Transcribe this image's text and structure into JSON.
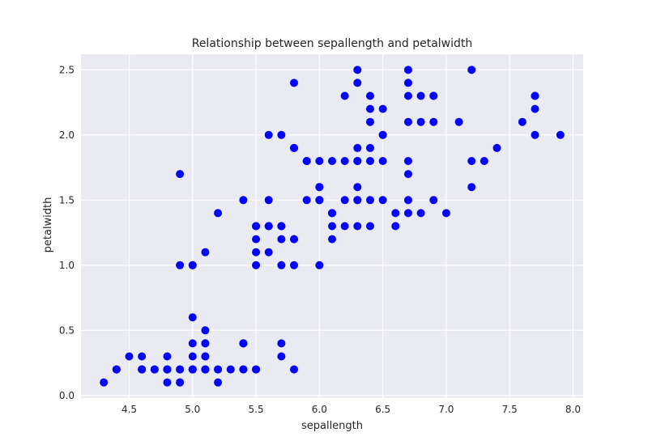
{
  "chart_data": {
    "type": "scatter",
    "title": "Relationship between sepallength and petalwidth",
    "xlabel": "sepallength",
    "ylabel": "petalwidth",
    "xlim": [
      4.12,
      8.08
    ],
    "ylim": [
      -0.02,
      2.62
    ],
    "xticks": [
      4.5,
      5.0,
      5.5,
      6.0,
      6.5,
      7.0,
      7.5,
      8.0
    ],
    "xtick_labels": [
      "4.5",
      "5.0",
      "5.5",
      "6.0",
      "6.5",
      "7.0",
      "7.5",
      "8.0"
    ],
    "yticks": [
      0.0,
      0.5,
      1.0,
      1.5,
      2.0,
      2.5
    ],
    "ytick_labels": [
      "0.0",
      "0.5",
      "1.0",
      "1.5",
      "2.0",
      "2.5"
    ],
    "grid": true,
    "colors": {
      "background": "#EAEAF2",
      "grid": "#FFFFFF",
      "marker": "#0000FF"
    },
    "points": [
      [
        5.1,
        0.2
      ],
      [
        4.9,
        0.2
      ],
      [
        4.7,
        0.2
      ],
      [
        4.6,
        0.2
      ],
      [
        5.0,
        0.2
      ],
      [
        5.4,
        0.4
      ],
      [
        4.6,
        0.3
      ],
      [
        5.0,
        0.2
      ],
      [
        4.4,
        0.2
      ],
      [
        4.9,
        0.1
      ],
      [
        5.4,
        0.2
      ],
      [
        4.8,
        0.2
      ],
      [
        4.8,
        0.1
      ],
      [
        4.3,
        0.1
      ],
      [
        5.8,
        0.2
      ],
      [
        5.7,
        0.4
      ],
      [
        5.4,
        0.4
      ],
      [
        5.1,
        0.3
      ],
      [
        5.7,
        0.3
      ],
      [
        5.1,
        0.3
      ],
      [
        5.4,
        0.2
      ],
      [
        5.1,
        0.4
      ],
      [
        4.6,
        0.2
      ],
      [
        5.1,
        0.5
      ],
      [
        4.8,
        0.2
      ],
      [
        5.0,
        0.2
      ],
      [
        5.0,
        0.4
      ],
      [
        5.2,
        0.2
      ],
      [
        5.2,
        0.2
      ],
      [
        4.7,
        0.2
      ],
      [
        4.8,
        0.2
      ],
      [
        5.4,
        0.4
      ],
      [
        5.2,
        0.1
      ],
      [
        5.5,
        0.2
      ],
      [
        4.9,
        0.2
      ],
      [
        5.0,
        0.2
      ],
      [
        5.5,
        0.2
      ],
      [
        4.9,
        0.1
      ],
      [
        4.4,
        0.2
      ],
      [
        5.1,
        0.2
      ],
      [
        5.0,
        0.3
      ],
      [
        4.5,
        0.3
      ],
      [
        4.4,
        0.2
      ],
      [
        5.0,
        0.6
      ],
      [
        5.1,
        0.4
      ],
      [
        4.8,
        0.3
      ],
      [
        5.1,
        0.2
      ],
      [
        4.6,
        0.2
      ],
      [
        5.3,
        0.2
      ],
      [
        5.0,
        0.2
      ],
      [
        7.0,
        1.4
      ],
      [
        6.4,
        1.5
      ],
      [
        6.9,
        1.5
      ],
      [
        5.5,
        1.3
      ],
      [
        6.5,
        1.5
      ],
      [
        5.7,
        1.3
      ],
      [
        6.3,
        1.6
      ],
      [
        4.9,
        1.0
      ],
      [
        6.6,
        1.3
      ],
      [
        5.2,
        1.4
      ],
      [
        5.0,
        1.0
      ],
      [
        5.9,
        1.5
      ],
      [
        6.0,
        1.0
      ],
      [
        6.1,
        1.4
      ],
      [
        5.6,
        1.3
      ],
      [
        6.7,
        1.4
      ],
      [
        5.6,
        1.5
      ],
      [
        5.8,
        1.0
      ],
      [
        6.2,
        1.5
      ],
      [
        5.6,
        1.1
      ],
      [
        5.9,
        1.8
      ],
      [
        6.1,
        1.3
      ],
      [
        6.3,
        1.5
      ],
      [
        6.1,
        1.2
      ],
      [
        6.4,
        1.3
      ],
      [
        6.6,
        1.4
      ],
      [
        6.8,
        1.4
      ],
      [
        6.7,
        1.7
      ],
      [
        6.0,
        1.5
      ],
      [
        5.7,
        1.0
      ],
      [
        5.5,
        1.1
      ],
      [
        5.5,
        1.0
      ],
      [
        5.8,
        1.2
      ],
      [
        6.0,
        1.6
      ],
      [
        5.4,
        1.5
      ],
      [
        6.0,
        1.6
      ],
      [
        6.7,
        1.5
      ],
      [
        6.3,
        1.3
      ],
      [
        5.6,
        1.3
      ],
      [
        5.5,
        1.3
      ],
      [
        5.5,
        1.2
      ],
      [
        6.1,
        1.4
      ],
      [
        5.8,
        1.2
      ],
      [
        5.0,
        1.0
      ],
      [
        5.6,
        1.3
      ],
      [
        5.7,
        1.2
      ],
      [
        5.7,
        1.3
      ],
      [
        6.2,
        1.3
      ],
      [
        5.1,
        1.1
      ],
      [
        5.7,
        1.3
      ],
      [
        6.3,
        2.5
      ],
      [
        5.8,
        1.9
      ],
      [
        7.1,
        2.1
      ],
      [
        6.3,
        1.8
      ],
      [
        6.5,
        2.2
      ],
      [
        7.6,
        2.1
      ],
      [
        4.9,
        1.7
      ],
      [
        7.3,
        1.8
      ],
      [
        6.7,
        1.8
      ],
      [
        7.2,
        2.5
      ],
      [
        6.5,
        2.0
      ],
      [
        6.4,
        1.9
      ],
      [
        6.8,
        2.1
      ],
      [
        5.7,
        2.0
      ],
      [
        5.8,
        2.4
      ],
      [
        6.4,
        2.3
      ],
      [
        6.5,
        1.8
      ],
      [
        7.7,
        2.2
      ],
      [
        7.7,
        2.3
      ],
      [
        6.0,
        1.5
      ],
      [
        6.9,
        2.3
      ],
      [
        5.6,
        2.0
      ],
      [
        7.7,
        2.0
      ],
      [
        6.3,
        1.8
      ],
      [
        6.7,
        2.1
      ],
      [
        7.2,
        1.8
      ],
      [
        6.2,
        1.8
      ],
      [
        6.1,
        1.8
      ],
      [
        6.4,
        2.1
      ],
      [
        7.2,
        1.6
      ],
      [
        7.4,
        1.9
      ],
      [
        7.9,
        2.0
      ],
      [
        6.4,
        2.2
      ],
      [
        6.3,
        1.5
      ],
      [
        6.1,
        1.4
      ],
      [
        7.7,
        2.3
      ],
      [
        6.3,
        2.4
      ],
      [
        6.4,
        1.8
      ],
      [
        6.0,
        1.8
      ],
      [
        6.9,
        2.1
      ],
      [
        6.7,
        2.4
      ],
      [
        6.9,
        2.3
      ],
      [
        5.8,
        1.9
      ],
      [
        6.8,
        2.3
      ],
      [
        6.7,
        2.5
      ],
      [
        6.7,
        2.3
      ],
      [
        6.3,
        1.9
      ],
      [
        6.5,
        2.0
      ],
      [
        6.2,
        2.3
      ],
      [
        5.9,
        1.8
      ]
    ]
  }
}
